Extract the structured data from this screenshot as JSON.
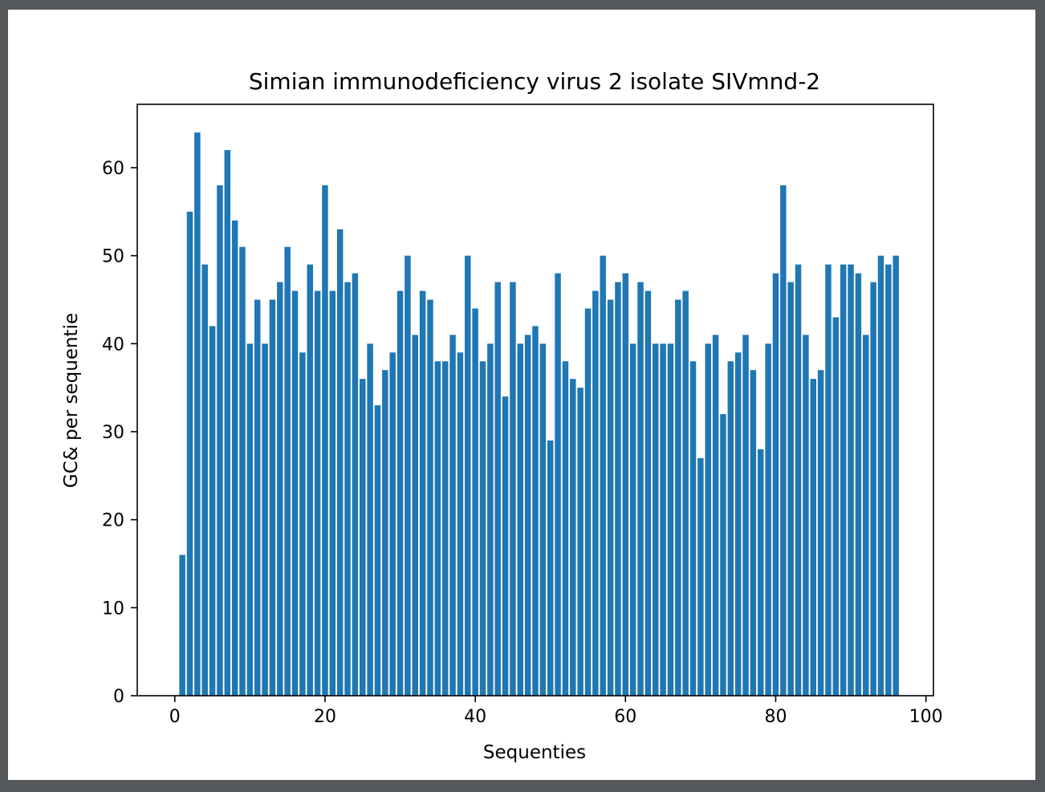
{
  "chart_data": {
    "type": "bar",
    "title": "Simian immunodeficiency virus 2 isolate SIVmnd-2",
    "xlabel": "Sequenties",
    "ylabel": "GC& per sequentie",
    "xlim": [
      -5,
      101
    ],
    "ylim": [
      0,
      67.2
    ],
    "xticks": [
      0,
      20,
      40,
      60,
      80,
      100
    ],
    "yticks": [
      0,
      10,
      20,
      30,
      40,
      50,
      60
    ],
    "bar_color": "#1f77b4",
    "grid": false,
    "x": [
      1,
      2,
      3,
      4,
      5,
      6,
      7,
      8,
      9,
      10,
      11,
      12,
      13,
      14,
      15,
      16,
      17,
      18,
      19,
      20,
      21,
      22,
      23,
      24,
      25,
      26,
      27,
      28,
      29,
      30,
      31,
      32,
      33,
      34,
      35,
      36,
      37,
      38,
      39,
      40,
      41,
      42,
      43,
      44,
      45,
      46,
      47,
      48,
      49,
      50,
      51,
      52,
      53,
      54,
      55,
      56,
      57,
      58,
      59,
      60,
      61,
      62,
      63,
      64,
      65,
      66,
      67,
      68,
      69,
      70,
      71,
      72,
      73,
      74,
      75,
      76,
      77,
      78,
      79,
      80,
      81,
      82,
      83,
      84,
      85,
      86,
      87,
      88,
      89,
      90,
      91,
      92,
      93,
      94,
      95,
      96
    ],
    "values": [
      16,
      55,
      64,
      49,
      42,
      58,
      62,
      54,
      51,
      40,
      45,
      40,
      45,
      47,
      51,
      46,
      39,
      49,
      46,
      58,
      46,
      53,
      47,
      48,
      36,
      40,
      33,
      37,
      39,
      46,
      50,
      41,
      46,
      45,
      38,
      38,
      41,
      39,
      50,
      44,
      38,
      40,
      47,
      34,
      47,
      40,
      41,
      42,
      40,
      29,
      48,
      38,
      36,
      35,
      44,
      46,
      50,
      45,
      47,
      48,
      40,
      47,
      46,
      40,
      40,
      40,
      45,
      46,
      38,
      27,
      40,
      41,
      32,
      38,
      39,
      41,
      37,
      28,
      40,
      48,
      58,
      47,
      49,
      41,
      36,
      37,
      49,
      43,
      49,
      49,
      48,
      41,
      47,
      50,
      49,
      50
    ]
  }
}
